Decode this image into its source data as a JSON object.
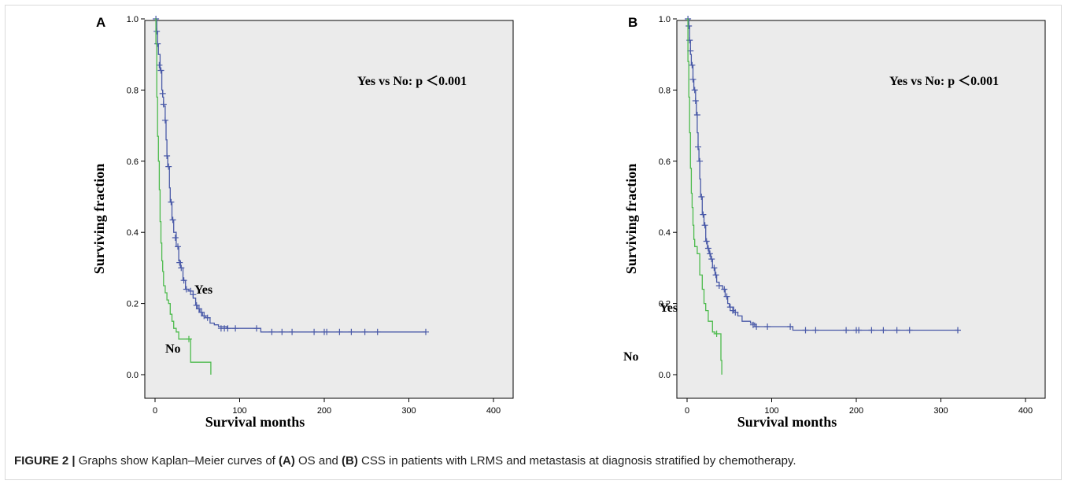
{
  "colors": {
    "plot_background": "#ebebeb",
    "yes_series": "#4a5aa8",
    "no_series": "#4cbb4c"
  },
  "caption": {
    "figure_label": "FIGURE 2 |",
    "text_1": " Graphs show Kaplan–Meier curves of ",
    "ref_a": "(A)",
    "text_2": " OS and ",
    "ref_b": "(B)",
    "text_3": " CSS in patients with LRMS and metastasis at diagnosis stratified by chemotherapy."
  },
  "chart_data": [
    {
      "type": "line",
      "panel_label": "A",
      "xlabel": "Survival months",
      "ylabel": "Surviving fraction",
      "xlim": [
        0,
        400
      ],
      "ylim": [
        0,
        1.0
      ],
      "x_ticks": [
        "0",
        "100",
        "200",
        "300",
        "400"
      ],
      "y_ticks": [
        "0.0",
        "0.2",
        "0.4",
        "0.6",
        "0.8",
        "1.0"
      ],
      "annotation": "Yes vs No: p ＜0.001",
      "series": [
        {
          "name": "Yes",
          "color": "#4a5aa8",
          "points": [
            [
              0,
              1.0
            ],
            [
              2,
              0.965
            ],
            [
              3,
              0.93
            ],
            [
              4,
              0.9
            ],
            [
              6,
              0.855
            ],
            [
              8,
              0.8
            ],
            [
              9,
              0.78
            ],
            [
              10,
              0.755
            ],
            [
              12,
              0.715
            ],
            [
              13,
              0.66
            ],
            [
              14,
              0.615
            ],
            [
              15,
              0.585
            ],
            [
              17,
              0.525
            ],
            [
              18,
              0.485
            ],
            [
              20,
              0.435
            ],
            [
              22,
              0.4
            ],
            [
              25,
              0.36
            ],
            [
              28,
              0.32
            ],
            [
              30,
              0.3
            ],
            [
              33,
              0.265
            ],
            [
              36,
              0.24
            ],
            [
              40,
              0.235
            ],
            [
              45,
              0.215
            ],
            [
              48,
              0.195
            ],
            [
              50,
              0.185
            ],
            [
              53,
              0.175
            ],
            [
              56,
              0.165
            ],
            [
              60,
              0.16
            ],
            [
              65,
              0.145
            ],
            [
              70,
              0.14
            ],
            [
              75,
              0.135
            ],
            [
              85,
              0.13
            ],
            [
              120,
              0.13
            ],
            [
              125,
              0.12
            ],
            [
              320,
              0.12
            ]
          ],
          "censor_marks": [
            [
              1,
              1.0
            ],
            [
              2,
              0.965
            ],
            [
              3,
              0.93
            ],
            [
              5,
              0.87
            ],
            [
              7,
              0.855
            ],
            [
              9,
              0.79
            ],
            [
              10,
              0.76
            ],
            [
              12,
              0.715
            ],
            [
              14,
              0.615
            ],
            [
              16,
              0.585
            ],
            [
              19,
              0.485
            ],
            [
              21,
              0.435
            ],
            [
              24,
              0.385
            ],
            [
              27,
              0.36
            ],
            [
              29,
              0.315
            ],
            [
              31,
              0.3
            ],
            [
              34,
              0.265
            ],
            [
              37,
              0.24
            ],
            [
              42,
              0.235
            ],
            [
              45,
              0.225
            ],
            [
              49,
              0.195
            ],
            [
              52,
              0.185
            ],
            [
              55,
              0.175
            ],
            [
              58,
              0.165
            ],
            [
              62,
              0.16
            ],
            [
              78,
              0.13
            ],
            [
              82,
              0.13
            ],
            [
              86,
              0.13
            ],
            [
              95,
              0.13
            ],
            [
              120,
              0.13
            ],
            [
              138,
              0.12
            ],
            [
              150,
              0.12
            ],
            [
              162,
              0.12
            ],
            [
              188,
              0.12
            ],
            [
              200,
              0.12
            ],
            [
              203,
              0.12
            ],
            [
              218,
              0.12
            ],
            [
              232,
              0.12
            ],
            [
              248,
              0.12
            ],
            [
              263,
              0.12
            ],
            [
              320,
              0.12
            ]
          ]
        },
        {
          "name": "No",
          "color": "#4cbb4c",
          "points": [
            [
              0,
              1.0
            ],
            [
              1,
              0.93
            ],
            [
              2,
              0.78
            ],
            [
              3,
              0.67
            ],
            [
              4,
              0.6
            ],
            [
              5,
              0.52
            ],
            [
              6,
              0.43
            ],
            [
              7,
              0.37
            ],
            [
              8,
              0.32
            ],
            [
              9,
              0.29
            ],
            [
              10,
              0.25
            ],
            [
              12,
              0.23
            ],
            [
              14,
              0.21
            ],
            [
              16,
              0.2
            ],
            [
              18,
              0.17
            ],
            [
              20,
              0.15
            ],
            [
              22,
              0.13
            ],
            [
              25,
              0.12
            ],
            [
              28,
              0.1
            ],
            [
              40,
              0.1
            ],
            [
              42,
              0.035
            ],
            [
              66,
              0.035
            ],
            [
              66,
              0.0
            ]
          ],
          "censor_marks": [
            [
              40,
              0.1
            ]
          ]
        }
      ]
    },
    {
      "type": "line",
      "panel_label": "B",
      "xlabel": "Survival months",
      "ylabel": "Surviving fraction",
      "xlim": [
        0,
        400
      ],
      "ylim": [
        0,
        1.0
      ],
      "x_ticks": [
        "0",
        "100",
        "200",
        "300",
        "400"
      ],
      "y_ticks": [
        "0.0",
        "0.2",
        "0.4",
        "0.6",
        "0.8",
        "1.0"
      ],
      "annotation": "Yes vs No: p ＜0.001",
      "series": [
        {
          "name": "Yes",
          "color": "#4a5aa8",
          "points": [
            [
              0,
              1.0
            ],
            [
              2,
              0.98
            ],
            [
              3,
              0.94
            ],
            [
              4,
              0.9
            ],
            [
              5,
              0.87
            ],
            [
              7,
              0.83
            ],
            [
              8,
              0.8
            ],
            [
              10,
              0.77
            ],
            [
              11,
              0.73
            ],
            [
              12,
              0.68
            ],
            [
              13,
              0.635
            ],
            [
              14,
              0.6
            ],
            [
              15,
              0.55
            ],
            [
              16,
              0.5
            ],
            [
              18,
              0.45
            ],
            [
              20,
              0.42
            ],
            [
              22,
              0.375
            ],
            [
              24,
              0.355
            ],
            [
              26,
              0.34
            ],
            [
              28,
              0.325
            ],
            [
              30,
              0.3
            ],
            [
              33,
              0.28
            ],
            [
              35,
              0.26
            ],
            [
              38,
              0.25
            ],
            [
              42,
              0.24
            ],
            [
              45,
              0.22
            ],
            [
              48,
              0.2
            ],
            [
              50,
              0.19
            ],
            [
              55,
              0.175
            ],
            [
              60,
              0.165
            ],
            [
              65,
              0.15
            ],
            [
              75,
              0.145
            ],
            [
              80,
              0.135
            ],
            [
              123,
              0.135
            ],
            [
              125,
              0.125
            ],
            [
              320,
              0.125
            ]
          ],
          "censor_marks": [
            [
              1,
              1.0
            ],
            [
              2,
              0.98
            ],
            [
              3,
              0.94
            ],
            [
              4,
              0.91
            ],
            [
              6,
              0.87
            ],
            [
              7,
              0.83
            ],
            [
              9,
              0.8
            ],
            [
              10,
              0.77
            ],
            [
              12,
              0.73
            ],
            [
              13,
              0.64
            ],
            [
              15,
              0.6
            ],
            [
              17,
              0.5
            ],
            [
              19,
              0.45
            ],
            [
              21,
              0.42
            ],
            [
              23,
              0.375
            ],
            [
              25,
              0.355
            ],
            [
              27,
              0.34
            ],
            [
              29,
              0.325
            ],
            [
              32,
              0.3
            ],
            [
              34,
              0.28
            ],
            [
              38,
              0.25
            ],
            [
              44,
              0.24
            ],
            [
              47,
              0.22
            ],
            [
              51,
              0.19
            ],
            [
              54,
              0.18
            ],
            [
              57,
              0.175
            ],
            [
              78,
              0.14
            ],
            [
              82,
              0.135
            ],
            [
              95,
              0.135
            ],
            [
              122,
              0.135
            ],
            [
              140,
              0.125
            ],
            [
              152,
              0.125
            ],
            [
              188,
              0.125
            ],
            [
              200,
              0.125
            ],
            [
              203,
              0.125
            ],
            [
              218,
              0.125
            ],
            [
              232,
              0.125
            ],
            [
              248,
              0.125
            ],
            [
              263,
              0.125
            ],
            [
              320,
              0.125
            ]
          ]
        },
        {
          "name": "No",
          "color": "#4cbb4c",
          "points": [
            [
              0,
              1.0
            ],
            [
              1,
              0.88
            ],
            [
              2,
              0.78
            ],
            [
              3,
              0.68
            ],
            [
              4,
              0.58
            ],
            [
              5,
              0.51
            ],
            [
              6,
              0.47
            ],
            [
              7,
              0.42
            ],
            [
              8,
              0.38
            ],
            [
              9,
              0.36
            ],
            [
              12,
              0.34
            ],
            [
              15,
              0.28
            ],
            [
              18,
              0.24
            ],
            [
              20,
              0.2
            ],
            [
              22,
              0.18
            ],
            [
              25,
              0.15
            ],
            [
              30,
              0.12
            ],
            [
              33,
              0.115
            ],
            [
              38,
              0.115
            ],
            [
              40,
              0.04
            ],
            [
              41,
              0.0
            ]
          ],
          "censor_marks": [
            [
              35,
              0.115
            ]
          ]
        }
      ]
    }
  ]
}
